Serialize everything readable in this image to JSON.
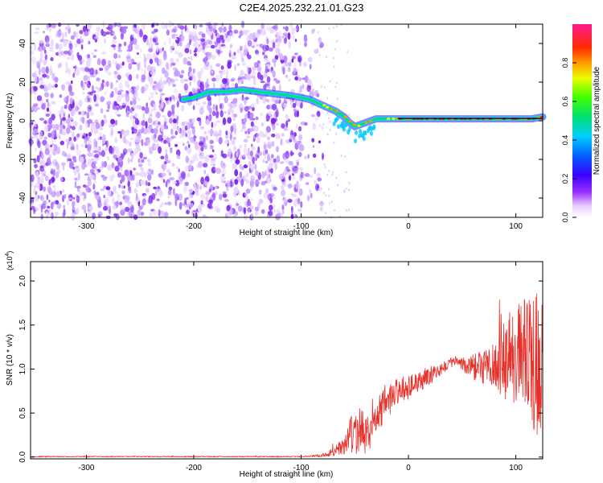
{
  "title": "C2E4.2025.232.21.01.G23",
  "chart_data": [
    {
      "type": "heatmap",
      "title": "C2E4.2025.232.21.01.G23",
      "xlabel": "Height of straight line (km)",
      "ylabel": "Frequency (Hz)",
      "xlim": [
        -352,
        125
      ],
      "ylim": [
        -50,
        50
      ],
      "xticks": [
        -300,
        -200,
        -100,
        0,
        100
      ],
      "yticks": [
        -40,
        -20,
        0,
        20,
        40
      ],
      "noise_region_x": [
        -352,
        -85
      ],
      "signal_trace": {
        "x": [
          -210,
          -200,
          -185,
          -170,
          -155,
          -140,
          -125,
          -110,
          -100,
          -92,
          -84,
          -76,
          -68,
          -60,
          -55,
          -50,
          -45,
          -40,
          -35,
          -30,
          -20,
          -10,
          0,
          10,
          20,
          40,
          60,
          80,
          100,
          115,
          125
        ],
        "freq_hz": [
          11,
          12,
          15,
          15,
          16,
          15,
          14,
          13,
          12,
          11,
          9,
          7,
          5,
          2,
          -1,
          -3,
          -2,
          -1,
          0,
          1,
          1,
          1,
          1,
          1,
          1,
          1,
          1,
          1,
          1,
          1,
          2
        ]
      },
      "colorbar": {
        "label": "Normalized spectral amplitude",
        "range": [
          0.0,
          1.0
        ],
        "ticks": [
          "0.0",
          "0.2",
          "0.4",
          "0.6",
          "0.8"
        ]
      }
    },
    {
      "type": "line",
      "xlabel": "Height of straight line (km)",
      "ylabel": "SNR (10 * v/v)",
      "y_multiplier_label": "(x10",
      "y_multiplier_exp": "4",
      "y_multiplier_close": ")",
      "xlim": [
        -352,
        125
      ],
      "ylim": [
        -0.02,
        2.22
      ],
      "xticks": [
        -300,
        -200,
        -100,
        0,
        100
      ],
      "yticks": [
        "0.0",
        "0.5",
        "1.0",
        "1.5",
        "2.0"
      ],
      "ytick_values": [
        0.0,
        0.5,
        1.0,
        1.5,
        2.0
      ],
      "color": "#e8302a",
      "envelope": {
        "x": [
          -352,
          -100,
          -90,
          -80,
          -70,
          -60,
          -55,
          -50,
          -45,
          -40,
          -35,
          -30,
          -25,
          -20,
          -10,
          0,
          10,
          20,
          30,
          40,
          45,
          50,
          60,
          70,
          80,
          90,
          100,
          110,
          118,
          122,
          125
        ],
        "mean": [
          0.005,
          0.005,
          0.01,
          0.02,
          0.06,
          0.12,
          0.22,
          0.3,
          0.28,
          0.22,
          0.3,
          0.45,
          0.55,
          0.65,
          0.75,
          0.8,
          0.85,
          0.92,
          1.0,
          1.07,
          1.1,
          1.05,
          1.02,
          1.0,
          1.05,
          1.1,
          1.12,
          1.15,
          1.05,
          1.1,
          1.2
        ],
        "spread": [
          0.005,
          0.005,
          0.01,
          0.02,
          0.05,
          0.12,
          0.2,
          0.32,
          0.3,
          0.25,
          0.18,
          0.2,
          0.2,
          0.22,
          0.15,
          0.15,
          0.12,
          0.1,
          0.08,
          0.06,
          0.06,
          0.08,
          0.15,
          0.2,
          0.3,
          0.45,
          0.55,
          0.7,
          0.8,
          0.95,
          0.8
        ]
      }
    }
  ]
}
